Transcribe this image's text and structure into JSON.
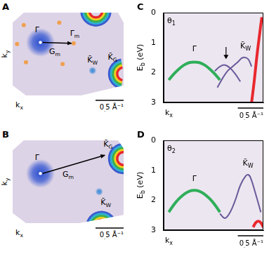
{
  "figure": {
    "maps": [
      {
        "letter": "A",
        "x_label": "kx",
        "y_label": "ky",
        "labels": [
          "Γ̄",
          "Γ̄m",
          "Gm",
          "K̄W",
          "K̄G"
        ],
        "scale_bar": {
          "value": 0.5,
          "label": "0.5 Å⁻¹"
        }
      },
      {
        "letter": "B",
        "x_label": "kx",
        "y_label": "ky",
        "labels": [
          "Γ̄",
          "Gm",
          "K̄G",
          "K̄W"
        ],
        "scale_bar": {
          "value": 0.5,
          "label": "0.5 Å⁻¹"
        }
      }
    ]
  },
  "chart_data": [
    {
      "type": "line",
      "letter": "C",
      "subtitle": "θ1",
      "x_label": "kx",
      "y_label": "Eb (eV)",
      "xlim": [
        -0.6,
        1.35
      ],
      "ylim": [
        3,
        0
      ],
      "yticks": [
        0,
        1,
        2,
        3
      ],
      "tick_labels": "y",
      "grid": false,
      "scale_bar": {
        "value": 0.5,
        "label": "0.5 Å⁻¹"
      },
      "series": [
        {
          "color": "#2fae5a",
          "x": [
            -0.5,
            -0.4,
            -0.3,
            -0.2,
            -0.1,
            0,
            0.1,
            0.2,
            0.3,
            0.4,
            0.5
          ],
          "values": [
            2.25,
            2.05,
            1.88,
            1.75,
            1.67,
            1.65,
            1.67,
            1.75,
            1.88,
            2.05,
            2.25
          ]
        },
        {
          "color": "#6a5a9a",
          "x": [
            0.45,
            0.55,
            0.65,
            0.75,
            0.85,
            0.95,
            1.05,
            1.12
          ],
          "values": [
            2.5,
            2.2,
            1.95,
            1.8,
            1.65,
            1.5,
            1.55,
            1.8
          ]
        },
        {
          "color": "#6a5a9a",
          "x": [
            0.4,
            0.5,
            0.6,
            0.7,
            0.8,
            0.9
          ],
          "values": [
            1.95,
            1.8,
            1.75,
            1.85,
            2.05,
            2.3
          ]
        },
        {
          "color": "#e8282e",
          "x": [
            1.12,
            1.17,
            1.22,
            1.27,
            1.32
          ],
          "values": [
            3.0,
            2.3,
            1.5,
            0.8,
            0.15
          ]
        }
      ],
      "annotations": [
        {
          "text": "Γ̄",
          "x": 0,
          "y": 1.3
        },
        {
          "text": "K̄W",
          "x": 1.0,
          "y": 1.2
        }
      ],
      "arrows": [
        {
          "x": 0.62,
          "y_from": 1.15,
          "y_to": 1.55
        }
      ]
    },
    {
      "type": "line",
      "letter": "D",
      "subtitle": "θ2",
      "x_label": "kx",
      "y_label": "Eb (eV)",
      "xlim": [
        -0.6,
        1.35
      ],
      "ylim": [
        3,
        0
      ],
      "yticks": [
        0,
        1,
        2,
        3
      ],
      "tick_labels": "y",
      "grid": false,
      "scale_bar": {
        "value": 0.5,
        "label": "0.5 Å⁻¹"
      },
      "series": [
        {
          "color": "#2fae5a",
          "x": [
            -0.5,
            -0.4,
            -0.3,
            -0.2,
            -0.1,
            0,
            0.1,
            0.2,
            0.3,
            0.4,
            0.5
          ],
          "values": [
            2.4,
            2.15,
            1.95,
            1.8,
            1.7,
            1.67,
            1.7,
            1.8,
            1.95,
            2.15,
            2.4
          ]
        },
        {
          "color": "#6a5a9a",
          "x": [
            0.5,
            0.6,
            0.7,
            0.8,
            0.9,
            1.0,
            1.05,
            1.1,
            1.2,
            1.3
          ],
          "values": [
            2.45,
            2.6,
            2.4,
            2.0,
            1.5,
            1.2,
            1.15,
            1.25,
            1.8,
            2.4
          ]
        },
        {
          "color": "#e8282e",
          "x": [
            1.15,
            1.2,
            1.25,
            1.3,
            1.35
          ],
          "values": [
            2.9,
            2.75,
            2.7,
            2.75,
            2.9
          ]
        }
      ],
      "annotations": [
        {
          "text": "Γ̄",
          "x": 0,
          "y": 1.35
        },
        {
          "text": "K̄W",
          "x": 1.05,
          "y": 0.85
        }
      ]
    }
  ]
}
